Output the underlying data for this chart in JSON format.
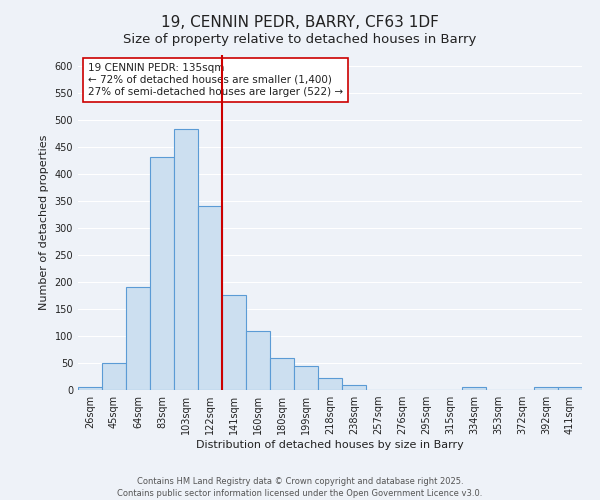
{
  "title": "19, CENNIN PEDR, BARRY, CF63 1DF",
  "subtitle": "Size of property relative to detached houses in Barry",
  "xlabel": "Distribution of detached houses by size in Barry",
  "ylabel": "Number of detached properties",
  "bar_labels": [
    "26sqm",
    "45sqm",
    "64sqm",
    "83sqm",
    "103sqm",
    "122sqm",
    "141sqm",
    "160sqm",
    "180sqm",
    "199sqm",
    "218sqm",
    "238sqm",
    "257sqm",
    "276sqm",
    "295sqm",
    "315sqm",
    "334sqm",
    "353sqm",
    "372sqm",
    "392sqm",
    "411sqm"
  ],
  "bar_values": [
    5,
    50,
    190,
    432,
    483,
    340,
    175,
    110,
    60,
    45,
    23,
    10,
    0,
    0,
    0,
    0,
    5,
    0,
    0,
    5,
    5
  ],
  "bar_color": "#ccdff0",
  "bar_edge_color": "#5b9bd5",
  "vline_position": 6.5,
  "vline_color": "#cc0000",
  "vline_label": "19 CENNIN PEDR: 135sqm",
  "annotation_line2": "← 72% of detached houses are smaller (1,400)",
  "annotation_line3": "27% of semi-detached houses are larger (522) →",
  "box_edge_color": "#cc0000",
  "ylim": [
    0,
    620
  ],
  "yticks": [
    0,
    50,
    100,
    150,
    200,
    250,
    300,
    350,
    400,
    450,
    500,
    550,
    600
  ],
  "footer_line1": "Contains HM Land Registry data © Crown copyright and database right 2025.",
  "footer_line2": "Contains public sector information licensed under the Open Government Licence v3.0.",
  "bg_color": "#eef2f8",
  "grid_color": "#ffffff",
  "title_fontsize": 11,
  "subtitle_fontsize": 9.5,
  "axis_label_fontsize": 8,
  "tick_fontsize": 7,
  "annotation_fontsize": 7.5,
  "footer_fontsize": 6
}
